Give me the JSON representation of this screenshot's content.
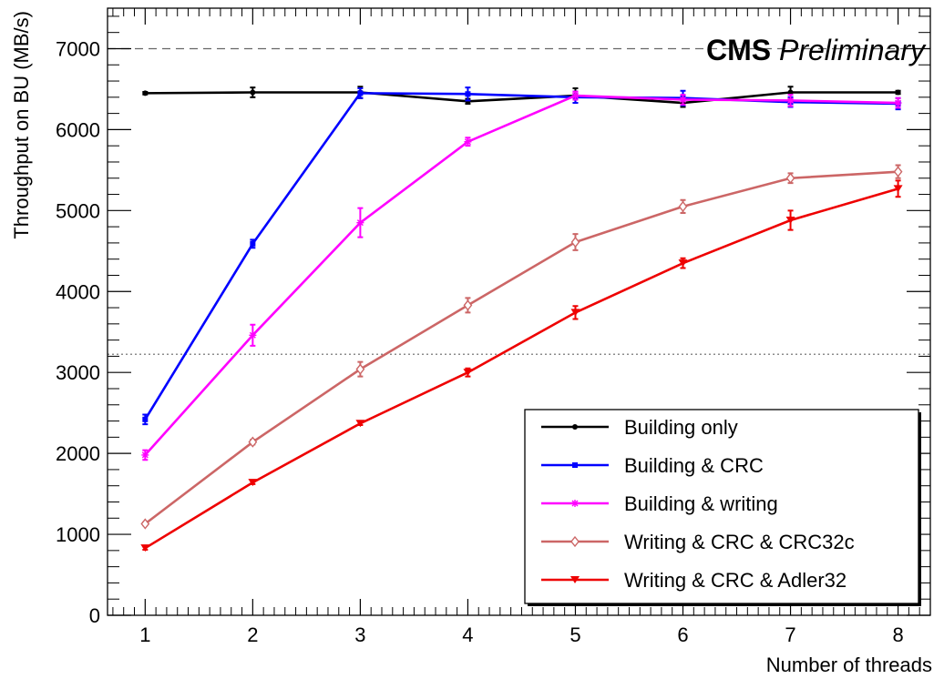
{
  "chart_data": {
    "type": "line",
    "title": "CMS Preliminary",
    "title_bold": "CMS",
    "title_italic": "Preliminary",
    "xlabel": "Number of threads",
    "ylabel": "Throughput on BU (MB/s)",
    "xlim": [
      0.65,
      8.3
    ],
    "ylim": [
      0,
      7500
    ],
    "x_ticks": [
      1,
      2,
      3,
      4,
      5,
      6,
      7,
      8
    ],
    "y_ticks": [
      0,
      1000,
      2000,
      3000,
      4000,
      5000,
      6000,
      7000
    ],
    "x": [
      1,
      2,
      3,
      4,
      5,
      6,
      7,
      8
    ],
    "reference_lines": [
      {
        "y": 7000,
        "style": "dashed"
      },
      {
        "y": 3225,
        "style": "dotted"
      }
    ],
    "legend_position": "bottom-right",
    "series": [
      {
        "name": "Building only",
        "color": "#000000",
        "marker": "dot",
        "values": [
          6450,
          6460,
          6460,
          6350,
          6420,
          6330,
          6460,
          6460
        ],
        "errors": [
          15,
          60,
          70,
          30,
          90,
          50,
          70,
          20
        ]
      },
      {
        "name": "Building & CRC",
        "color": "#0000ff",
        "marker": "square",
        "values": [
          2420,
          4590,
          6450,
          6440,
          6400,
          6390,
          6340,
          6320
        ],
        "errors": [
          60,
          50,
          60,
          80,
          70,
          90,
          60,
          70
        ]
      },
      {
        "name": "Building & writing",
        "color": "#ff00ff",
        "marker": "star",
        "values": [
          1980,
          3460,
          4850,
          5850,
          6420,
          6370,
          6360,
          6330
        ],
        "errors": [
          60,
          130,
          180,
          50,
          50,
          60,
          70,
          60
        ]
      },
      {
        "name": "Writing & CRC & CRC32c",
        "color": "#cc6666",
        "marker": "diamond",
        "values": [
          1130,
          2140,
          3040,
          3830,
          4610,
          5050,
          5400,
          5480
        ],
        "errors": [
          20,
          30,
          90,
          90,
          100,
          80,
          60,
          80
        ]
      },
      {
        "name": "Writing & CRC & Adler32",
        "color": "#ee0000",
        "marker": "triangle-down",
        "values": [
          830,
          1640,
          2370,
          3000,
          3740,
          4350,
          4880,
          5270
        ],
        "errors": [
          20,
          20,
          20,
          50,
          80,
          60,
          120,
          100
        ]
      }
    ]
  }
}
